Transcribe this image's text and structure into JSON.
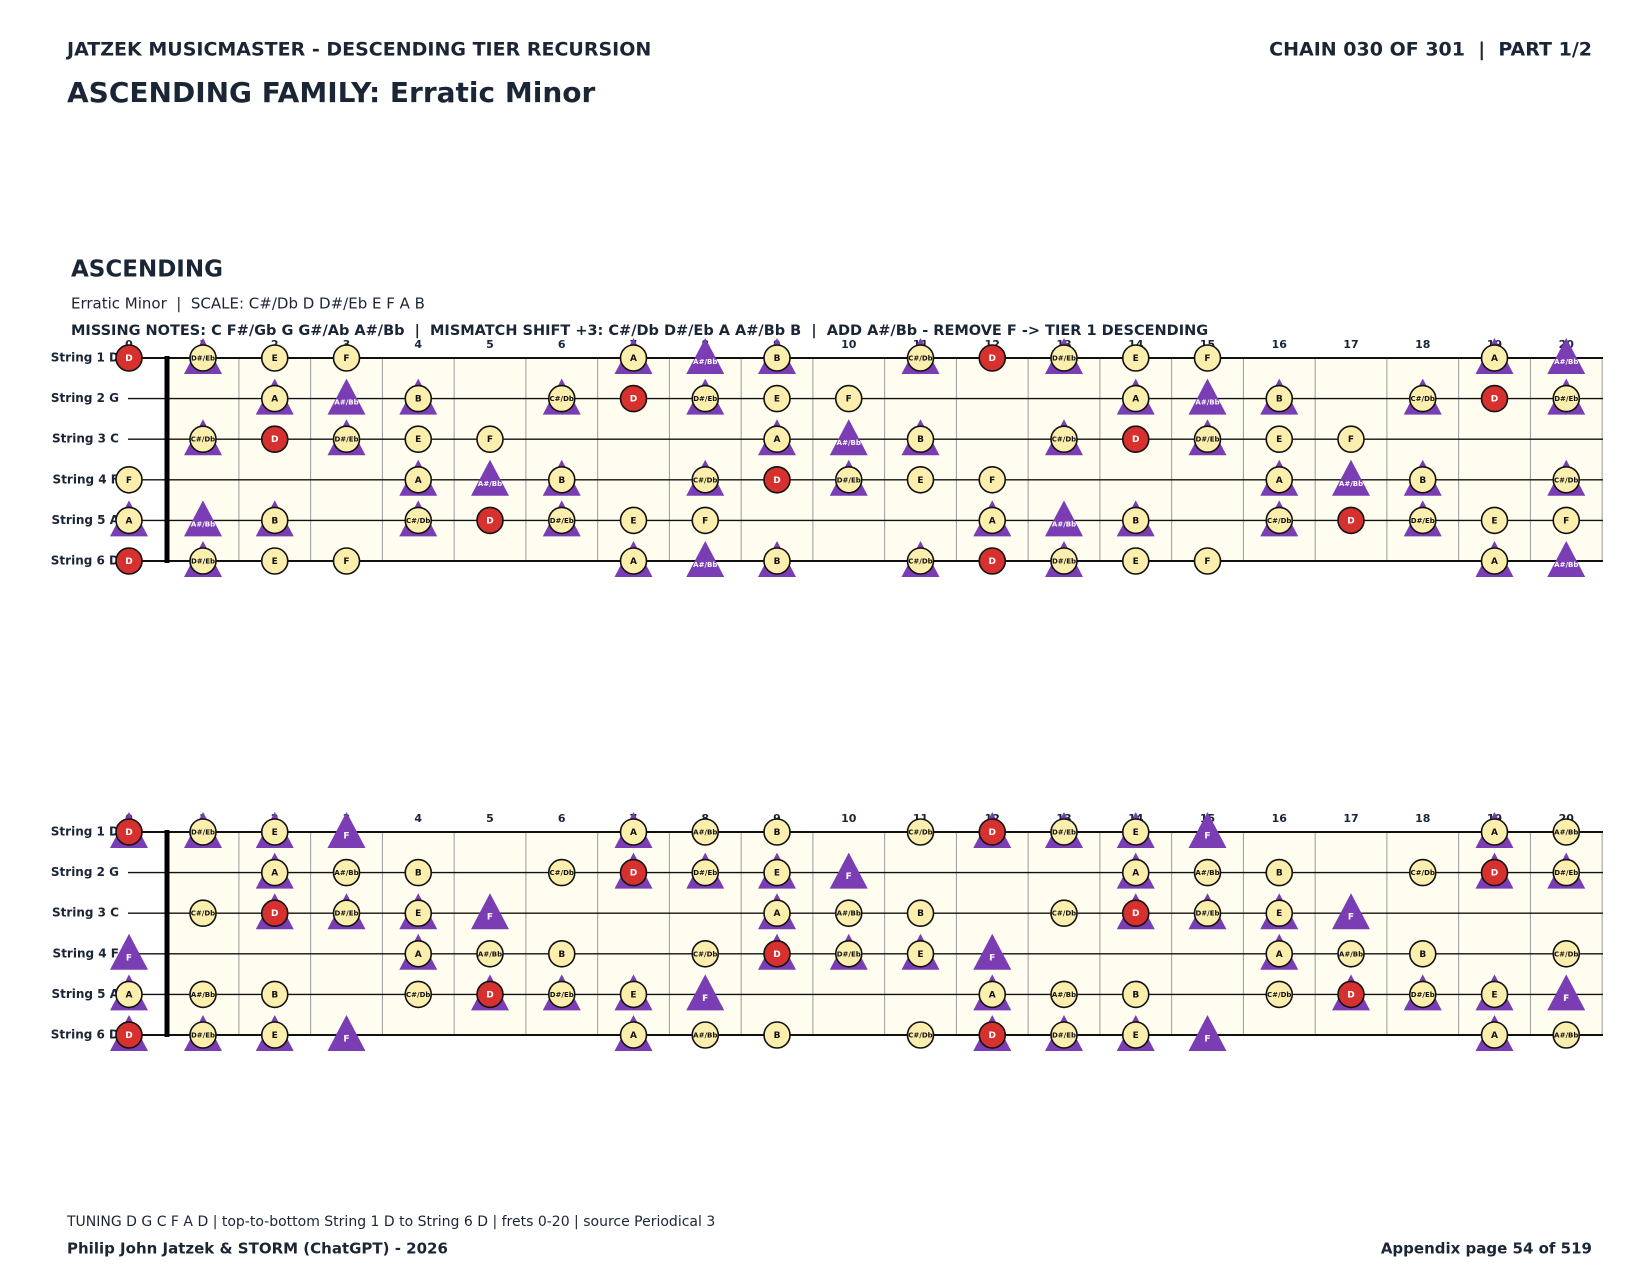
{
  "header": {
    "left": "JATZEK MUSICMASTER - DESCENDING TIER RECURSION",
    "right": "CHAIN 030 OF 301  |  PART 1/2",
    "title": "ASCENDING FAMILY: Erratic Minor"
  },
  "section": {
    "heading": "ASCENDING",
    "subtitle": "Erratic Minor  |  SCALE: C#/Db D D#/Eb E F A B",
    "info": "MISSING NOTES: C F#/Gb G G#/Ab A#/Bb  |  MISMATCH SHIFT +3: C#/Db D#/Eb A A#/Bb B  |  ADD A#/Bb - REMOVE F -> TIER 1 DESCENDING"
  },
  "boards": [
    {
      "frets": [
        0,
        1,
        2,
        3,
        4,
        5,
        6,
        7,
        8,
        9,
        10,
        11,
        12,
        13,
        14,
        15,
        16,
        17,
        18,
        19,
        20
      ],
      "strings": [
        {
          "label": "String 1 D",
          "notes": [
            [
              0,
              "D",
              "r"
            ],
            [
              1,
              "D#/Eb",
              "ct"
            ],
            [
              2,
              "E",
              "c"
            ],
            [
              3,
              "F",
              "c"
            ],
            [
              7,
              "A",
              "ct"
            ],
            [
              8,
              "A#/Bb",
              "t"
            ],
            [
              9,
              "B",
              "ct"
            ],
            [
              11,
              "C#/Db",
              "ct"
            ],
            [
              12,
              "D",
              "r"
            ],
            [
              13,
              "D#/Eb",
              "ct"
            ],
            [
              14,
              "E",
              "c"
            ],
            [
              15,
              "F",
              "c"
            ],
            [
              19,
              "A",
              "ct"
            ],
            [
              20,
              "A#/Bb",
              "t"
            ]
          ]
        },
        {
          "label": "String 2 G",
          "notes": [
            [
              2,
              "A",
              "ct"
            ],
            [
              3,
              "A#/Bb",
              "t"
            ],
            [
              4,
              "B",
              "ct"
            ],
            [
              6,
              "C#/Db",
              "ct"
            ],
            [
              7,
              "D",
              "r"
            ],
            [
              8,
              "D#/Eb",
              "ct"
            ],
            [
              9,
              "E",
              "c"
            ],
            [
              10,
              "F",
              "c"
            ],
            [
              14,
              "A",
              "ct"
            ],
            [
              15,
              "A#/Bb",
              "t"
            ],
            [
              16,
              "B",
              "ct"
            ],
            [
              18,
              "C#/Db",
              "ct"
            ],
            [
              19,
              "D",
              "r"
            ],
            [
              20,
              "D#/Eb",
              "ct"
            ]
          ]
        },
        {
          "label": "String 3 C",
          "notes": [
            [
              1,
              "C#/Db",
              "ct"
            ],
            [
              2,
              "D",
              "r"
            ],
            [
              3,
              "D#/Eb",
              "ct"
            ],
            [
              4,
              "E",
              "c"
            ],
            [
              5,
              "F",
              "c"
            ],
            [
              9,
              "A",
              "ct"
            ],
            [
              10,
              "A#/Bb",
              "t"
            ],
            [
              11,
              "B",
              "ct"
            ],
            [
              13,
              "C#/Db",
              "ct"
            ],
            [
              14,
              "D",
              "r"
            ],
            [
              15,
              "D#/Eb",
              "ct"
            ],
            [
              16,
              "E",
              "c"
            ],
            [
              17,
              "F",
              "c"
            ]
          ]
        },
        {
          "label": "String 4 F",
          "notes": [
            [
              0,
              "F",
              "c"
            ],
            [
              4,
              "A",
              "ct"
            ],
            [
              5,
              "A#/Bb",
              "t"
            ],
            [
              6,
              "B",
              "ct"
            ],
            [
              8,
              "C#/Db",
              "ct"
            ],
            [
              9,
              "D",
              "r"
            ],
            [
              10,
              "D#/Eb",
              "ct"
            ],
            [
              11,
              "E",
              "c"
            ],
            [
              12,
              "F",
              "c"
            ],
            [
              16,
              "A",
              "ct"
            ],
            [
              17,
              "A#/Bb",
              "t"
            ],
            [
              18,
              "B",
              "ct"
            ],
            [
              20,
              "C#/Db",
              "ct"
            ]
          ]
        },
        {
          "label": "String 5 A",
          "notes": [
            [
              0,
              "A",
              "ct"
            ],
            [
              1,
              "A#/Bb",
              "t"
            ],
            [
              2,
              "B",
              "ct"
            ],
            [
              4,
              "C#/Db",
              "ct"
            ],
            [
              5,
              "D",
              "r"
            ],
            [
              6,
              "D#/Eb",
              "ct"
            ],
            [
              7,
              "E",
              "c"
            ],
            [
              8,
              "F",
              "c"
            ],
            [
              12,
              "A",
              "ct"
            ],
            [
              13,
              "A#/Bb",
              "t"
            ],
            [
              14,
              "B",
              "ct"
            ],
            [
              16,
              "C#/Db",
              "ct"
            ],
            [
              17,
              "D",
              "r"
            ],
            [
              18,
              "D#/Eb",
              "ct"
            ],
            [
              19,
              "E",
              "c"
            ],
            [
              20,
              "F",
              "c"
            ]
          ]
        },
        {
          "label": "String 6 D",
          "notes": [
            [
              0,
              "D",
              "r"
            ],
            [
              1,
              "D#/Eb",
              "ct"
            ],
            [
              2,
              "E",
              "c"
            ],
            [
              3,
              "F",
              "c"
            ],
            [
              7,
              "A",
              "ct"
            ],
            [
              8,
              "A#/Bb",
              "t"
            ],
            [
              9,
              "B",
              "ct"
            ],
            [
              11,
              "C#/Db",
              "ct"
            ],
            [
              12,
              "D",
              "r"
            ],
            [
              13,
              "D#/Eb",
              "ct"
            ],
            [
              14,
              "E",
              "c"
            ],
            [
              15,
              "F",
              "c"
            ],
            [
              19,
              "A",
              "ct"
            ],
            [
              20,
              "A#/Bb",
              "t"
            ]
          ]
        }
      ]
    },
    {
      "frets": [
        0,
        1,
        2,
        3,
        4,
        5,
        6,
        7,
        8,
        9,
        10,
        11,
        12,
        13,
        14,
        15,
        16,
        17,
        18,
        19,
        20
      ],
      "strings": [
        {
          "label": "String 1 D",
          "notes": [
            [
              0,
              "D",
              "rt"
            ],
            [
              1,
              "D#/Eb",
              "ct"
            ],
            [
              2,
              "E",
              "ct"
            ],
            [
              3,
              "F",
              "t"
            ],
            [
              7,
              "A",
              "ct"
            ],
            [
              8,
              "A#/Bb",
              "c"
            ],
            [
              9,
              "B",
              "c"
            ],
            [
              11,
              "C#/Db",
              "c"
            ],
            [
              12,
              "D",
              "rt"
            ],
            [
              13,
              "D#/Eb",
              "ct"
            ],
            [
              14,
              "E",
              "ct"
            ],
            [
              15,
              "F",
              "t"
            ],
            [
              19,
              "A",
              "ct"
            ],
            [
              20,
              "A#/Bb",
              "c"
            ]
          ]
        },
        {
          "label": "String 2 G",
          "notes": [
            [
              2,
              "A",
              "ct"
            ],
            [
              3,
              "A#/Bb",
              "c"
            ],
            [
              4,
              "B",
              "c"
            ],
            [
              6,
              "C#/Db",
              "c"
            ],
            [
              7,
              "D",
              "rt"
            ],
            [
              8,
              "D#/Eb",
              "ct"
            ],
            [
              9,
              "E",
              "ct"
            ],
            [
              10,
              "F",
              "t"
            ],
            [
              14,
              "A",
              "ct"
            ],
            [
              15,
              "A#/Bb",
              "c"
            ],
            [
              16,
              "B",
              "c"
            ],
            [
              18,
              "C#/Db",
              "c"
            ],
            [
              19,
              "D",
              "rt"
            ],
            [
              20,
              "D#/Eb",
              "ct"
            ]
          ]
        },
        {
          "label": "String 3 C",
          "notes": [
            [
              1,
              "C#/Db",
              "c"
            ],
            [
              2,
              "D",
              "rt"
            ],
            [
              3,
              "D#/Eb",
              "ct"
            ],
            [
              4,
              "E",
              "ct"
            ],
            [
              5,
              "F",
              "t"
            ],
            [
              9,
              "A",
              "ct"
            ],
            [
              10,
              "A#/Bb",
              "c"
            ],
            [
              11,
              "B",
              "c"
            ],
            [
              13,
              "C#/Db",
              "c"
            ],
            [
              14,
              "D",
              "rt"
            ],
            [
              15,
              "D#/Eb",
              "ct"
            ],
            [
              16,
              "E",
              "ct"
            ],
            [
              17,
              "F",
              "t"
            ]
          ]
        },
        {
          "label": "String 4 F",
          "notes": [
            [
              0,
              "F",
              "t"
            ],
            [
              4,
              "A",
              "ct"
            ],
            [
              5,
              "A#/Bb",
              "c"
            ],
            [
              6,
              "B",
              "c"
            ],
            [
              8,
              "C#/Db",
              "c"
            ],
            [
              9,
              "D",
              "rt"
            ],
            [
              10,
              "D#/Eb",
              "ct"
            ],
            [
              11,
              "E",
              "ct"
            ],
            [
              12,
              "F",
              "t"
            ],
            [
              16,
              "A",
              "ct"
            ],
            [
              17,
              "A#/Bb",
              "c"
            ],
            [
              18,
              "B",
              "c"
            ],
            [
              20,
              "C#/Db",
              "c"
            ]
          ]
        },
        {
          "label": "String 5 A",
          "notes": [
            [
              0,
              "A",
              "ct"
            ],
            [
              1,
              "A#/Bb",
              "c"
            ],
            [
              2,
              "B",
              "c"
            ],
            [
              4,
              "C#/Db",
              "c"
            ],
            [
              5,
              "D",
              "rt"
            ],
            [
              6,
              "D#/Eb",
              "ct"
            ],
            [
              7,
              "E",
              "ct"
            ],
            [
              8,
              "F",
              "t"
            ],
            [
              12,
              "A",
              "ct"
            ],
            [
              13,
              "A#/Bb",
              "c"
            ],
            [
              14,
              "B",
              "c"
            ],
            [
              16,
              "C#/Db",
              "c"
            ],
            [
              17,
              "D",
              "rt"
            ],
            [
              18,
              "D#/Eb",
              "ct"
            ],
            [
              19,
              "E",
              "ct"
            ],
            [
              20,
              "F",
              "t"
            ]
          ]
        },
        {
          "label": "String 6 D",
          "notes": [
            [
              0,
              "D",
              "rt"
            ],
            [
              1,
              "D#/Eb",
              "ct"
            ],
            [
              2,
              "E",
              "ct"
            ],
            [
              3,
              "F",
              "t"
            ],
            [
              7,
              "A",
              "ct"
            ],
            [
              8,
              "A#/Bb",
              "c"
            ],
            [
              9,
              "B",
              "c"
            ],
            [
              11,
              "C#/Db",
              "c"
            ],
            [
              12,
              "D",
              "rt"
            ],
            [
              13,
              "D#/Eb",
              "ct"
            ],
            [
              14,
              "E",
              "ct"
            ],
            [
              15,
              "F",
              "t"
            ],
            [
              19,
              "A",
              "ct"
            ],
            [
              20,
              "A#/Bb",
              "c"
            ]
          ]
        }
      ]
    }
  ],
  "footer": {
    "note": "TUNING D G C F A D | top-to-bottom String 1 D to String 6 D | frets 0-20 | source Periodical 3",
    "credit": "Philip John Jatzek & STORM (ChatGPT) - 2026",
    "page": "Appendix page 54 of 519"
  }
}
